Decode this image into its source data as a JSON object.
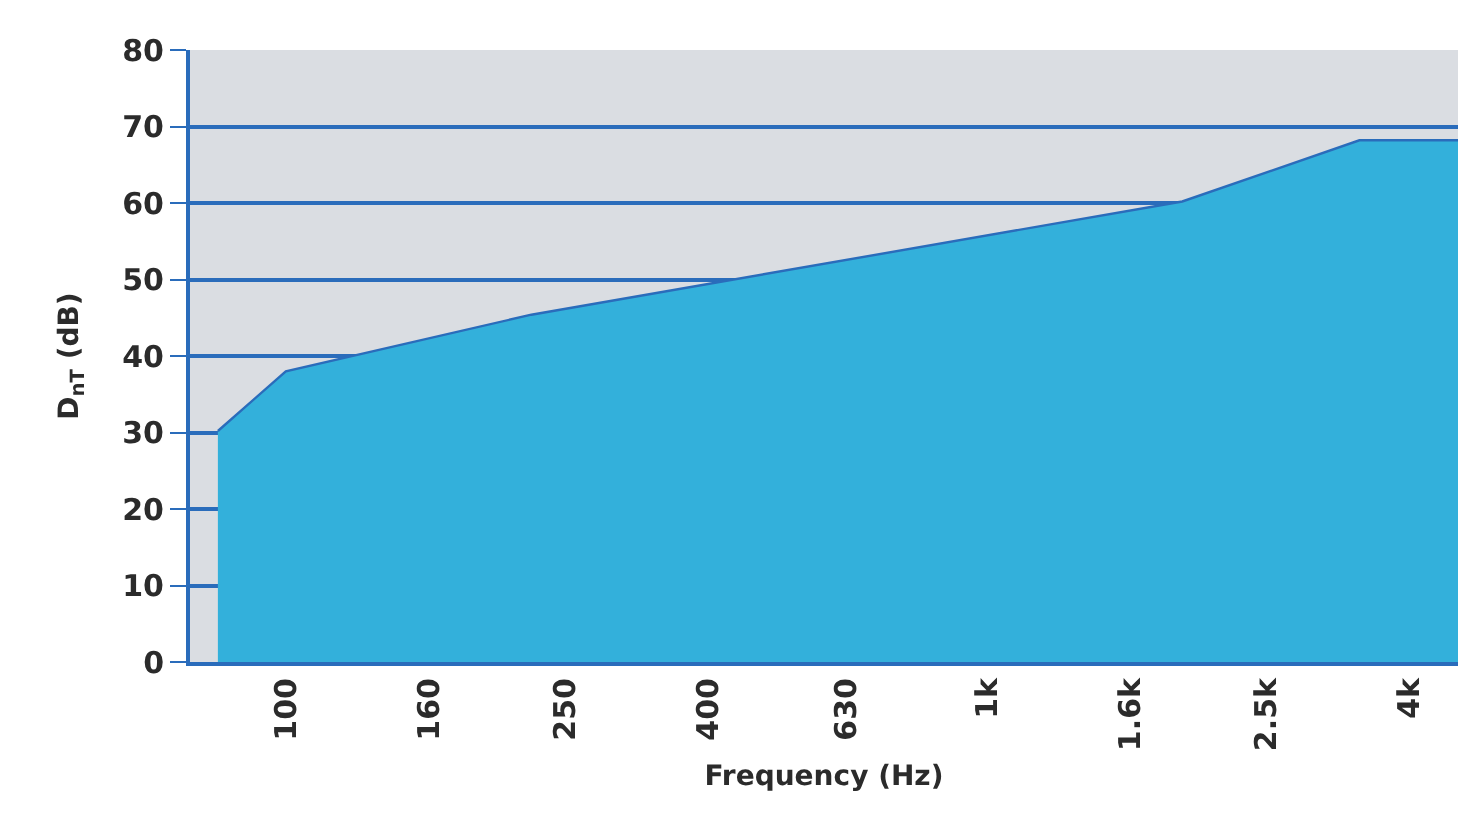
{
  "chart_data": {
    "type": "area",
    "xlabel": "Frequency (Hz)",
    "ylabel": "D$_{nT}$ (dB)",
    "x": [
      80,
      100,
      224,
      1900,
      3400,
      4700
    ],
    "series": [
      {
        "color": "#33b0db",
        "values": [
          30.2,
          38,
          45.4,
          60.2,
          68.2,
          68.2
        ]
      }
    ],
    "log": "x",
    "xlim": [
      73,
      4700
    ],
    "xticks": [
      100,
      160,
      250,
      400,
      630,
      {
        "value": 1000,
        "label": "1k"
      },
      {
        "value": 1600,
        "label": "1.6k"
      },
      {
        "value": 2500,
        "label": "2.5k"
      },
      {
        "value": 4000,
        "label": "4k"
      }
    ],
    "ylim": [
      0,
      80
    ],
    "yticks": [
      0,
      10,
      20,
      30,
      40,
      50,
      60,
      70,
      80
    ],
    "grid": "y"
  }
}
